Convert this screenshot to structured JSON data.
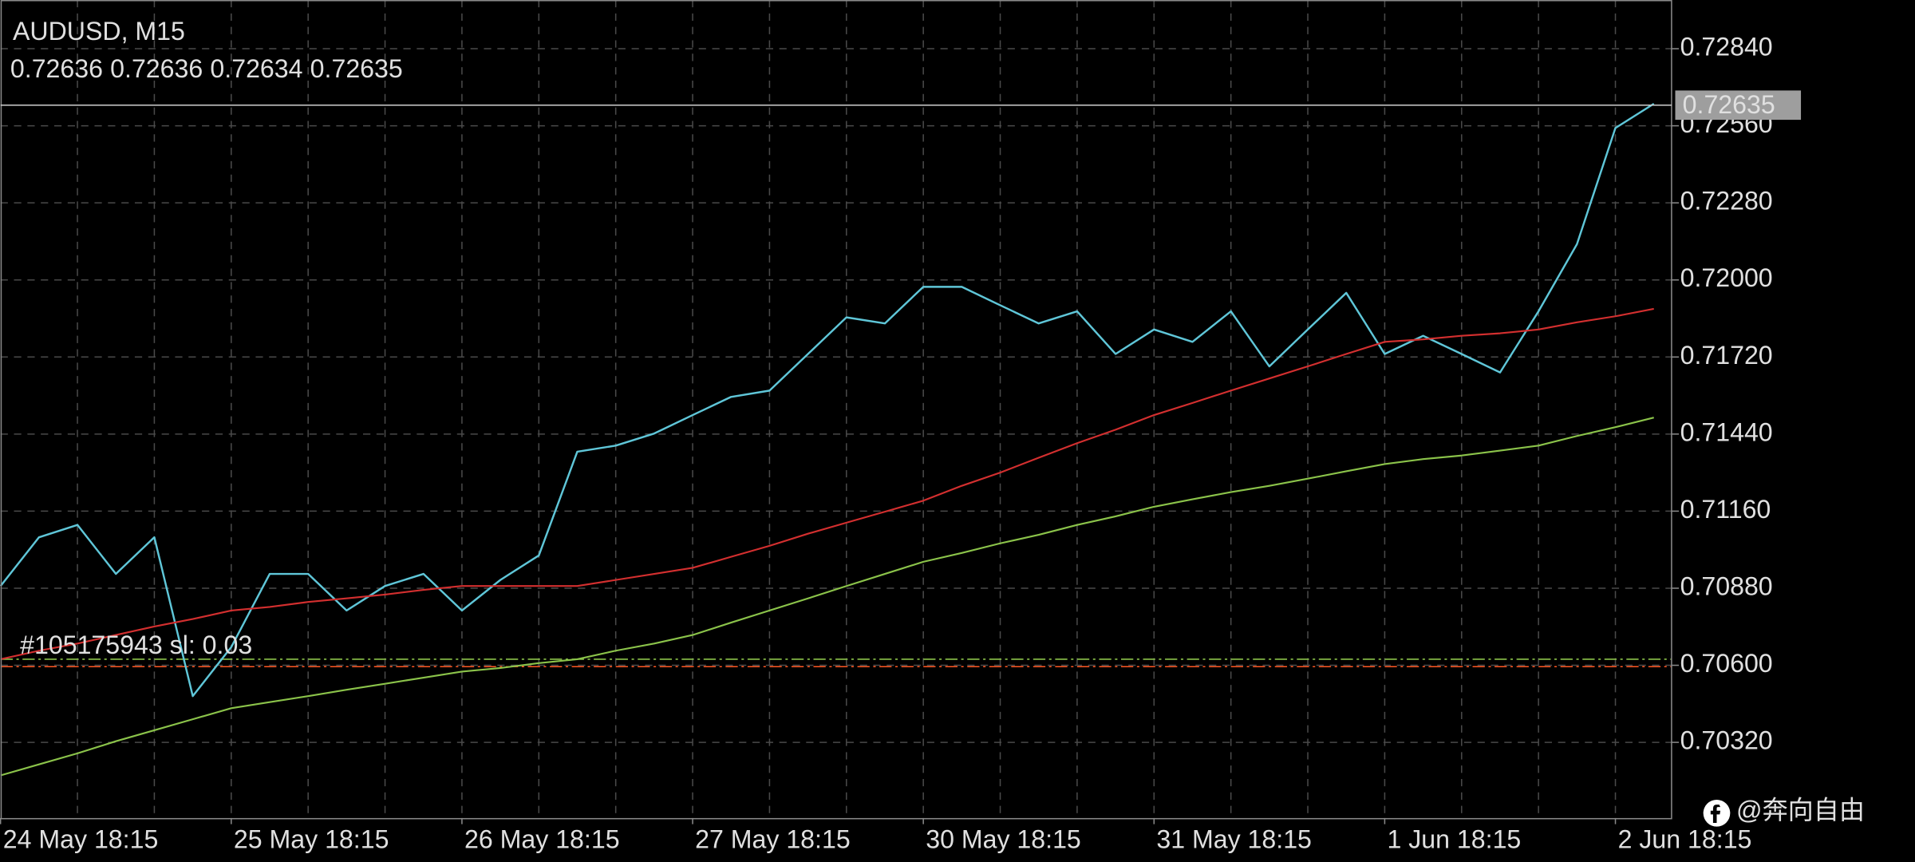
{
  "chart_data": {
    "type": "line",
    "title": "AUDUSD, M15",
    "ohlc": [
      0.72636,
      0.72636,
      0.72634,
      0.72635
    ],
    "categories": [
      "24 May 18:15",
      null,
      null,
      null,
      null,
      null,
      "25 May 18:15",
      null,
      null,
      null,
      null,
      null,
      "26 May 18:15",
      null,
      null,
      null,
      null,
      null,
      "27 May 18:15",
      null,
      null,
      null,
      null,
      null,
      "30 May 18:15",
      null,
      null,
      null,
      null,
      null,
      "31 May 18:15",
      null,
      null,
      null,
      null,
      null,
      "1 Jun 18:15",
      null,
      null,
      null,
      null,
      null,
      "2 Jun 18:15",
      null
    ],
    "series": [
      {
        "color": "#5fc6d8",
        "values": [
          0.70888,
          0.71065,
          0.7111,
          0.70932,
          0.71065,
          0.70488,
          0.70666,
          0.70932,
          0.70932,
          0.70799,
          0.70888,
          0.70932,
          0.70799,
          0.7091,
          0.70999,
          0.71376,
          0.71398,
          0.71442,
          0.71509,
          0.71575,
          0.71598,
          0.71731,
          0.71864,
          0.71842,
          0.71975,
          0.71975,
          0.71908,
          0.71842,
          0.71886,
          0.71731,
          0.7182,
          0.71775,
          0.71886,
          0.71686,
          0.7182,
          0.71953,
          0.71731,
          0.71797,
          0.71731,
          0.71664,
          0.71886,
          0.7213,
          0.72552,
          0.7264
        ]
      },
      {
        "color": "#d32f2f",
        "values": [
          0.70622,
          0.70653,
          0.70679,
          0.7071,
          0.70741,
          0.70768,
          0.70799,
          0.70812,
          0.7083,
          0.70843,
          0.70857,
          0.70874,
          0.70888,
          0.70888,
          0.70888,
          0.70888,
          0.7091,
          0.70932,
          0.70954,
          0.70994,
          0.71034,
          0.71078,
          0.71118,
          0.71158,
          0.71198,
          0.71252,
          0.713,
          0.71354,
          0.71407,
          0.71456,
          0.71509,
          0.71553,
          0.71598,
          0.71642,
          0.71686,
          0.71731,
          0.71775,
          0.71784,
          0.71797,
          0.71806,
          0.7182,
          0.71846,
          0.71868,
          0.71895
        ]
      },
      {
        "color": "#8bc34a",
        "values": [
          0.702,
          0.7024,
          0.7028,
          0.70324,
          0.70364,
          0.70404,
          0.70444,
          0.70466,
          0.70488,
          0.70511,
          0.70533,
          0.70555,
          0.70577,
          0.7059,
          0.70608,
          0.70622,
          0.70653,
          0.70679,
          0.7071,
          0.70755,
          0.70799,
          0.70843,
          0.70888,
          0.70932,
          0.70976,
          0.71008,
          0.71043,
          0.71074,
          0.7111,
          0.71141,
          0.71176,
          0.71203,
          0.71229,
          0.71252,
          0.71278,
          0.71305,
          0.71331,
          0.71349,
          0.71362,
          0.7138,
          0.71398,
          0.71433,
          0.71465,
          0.715
        ]
      }
    ],
    "ylim": [
      0.70045,
      0.73017
    ],
    "yticks": [
      {
        "value": 0.7032,
        "label": "0.70320"
      },
      {
        "value": 0.706,
        "label": "0.70600"
      },
      {
        "value": 0.7088,
        "label": "0.70880"
      },
      {
        "value": 0.7116,
        "label": "0.71160"
      },
      {
        "value": 0.7144,
        "label": "0.71440"
      },
      {
        "value": 0.7172,
        "label": "0.71720"
      },
      {
        "value": 0.72,
        "label": "0.72000"
      },
      {
        "value": 0.7228,
        "label": "0.72280"
      },
      {
        "value": 0.7256,
        "label": "0.72560"
      },
      {
        "value": 0.7284,
        "label": "0.72840"
      }
    ],
    "grid": true,
    "current_price": 0.72635,
    "levels": [
      {
        "value": 0.70622,
        "color": "#8bc34a"
      },
      {
        "value": 0.70595,
        "color": "#ff5722"
      }
    ],
    "order_label": "#105175943 sl: 0.03",
    "watermark": "@奔向自由"
  }
}
